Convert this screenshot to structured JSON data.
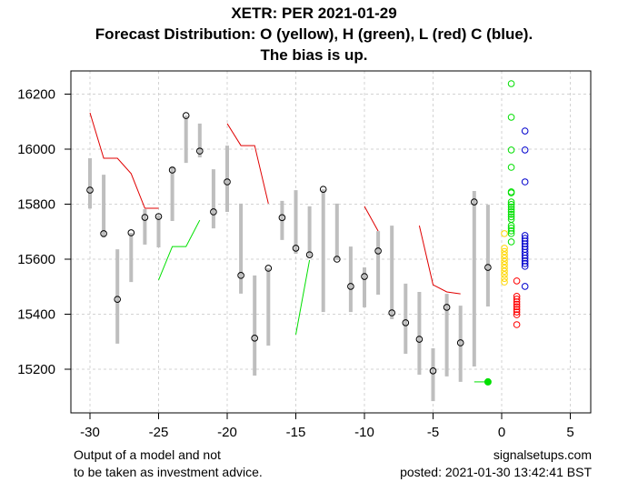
{
  "chart_data": {
    "type": "scatter",
    "title": "XETR: PER 2021-01-29",
    "subtitle": "Forecast Distribution: O (yellow), H (green), L (red) C (blue).",
    "subtitle2": "The bias is up.",
    "xlabel": "",
    "ylabel": "",
    "xlim": [
      -31.5,
      6.5
    ],
    "ylim": [
      15050,
      16280
    ],
    "grid": true,
    "x_ticks": [
      -30,
      -25,
      -20,
      -15,
      -10,
      -5,
      0,
      5
    ],
    "y_ticks": [
      15200,
      15400,
      15600,
      15800,
      16000,
      16200
    ],
    "x_tick_labels": [
      "-30",
      "-25",
      "-20",
      "-15",
      "-10",
      "-5",
      "0",
      "5"
    ],
    "y_tick_labels": [
      "15200",
      "15400",
      "15600",
      "15800",
      "16000",
      "16200"
    ],
    "colors": {
      "bar": "#bebebe",
      "close_marker": "#000000",
      "red_line": "#e00000",
      "green_line": "#00e000",
      "open_dist": "#ffd700",
      "high_dist": "#00e000",
      "low_dist": "#ff0000",
      "close_dist": "#0000cd"
    },
    "bars": [
      {
        "x": -30,
        "high": 15967,
        "low": 15784,
        "close": 15851
      },
      {
        "x": -29,
        "high": 15907,
        "low": 15679,
        "close": 15693
      },
      {
        "x": -28,
        "high": 15636,
        "low": 15293,
        "close": 15454
      },
      {
        "x": -27,
        "high": 15696,
        "low": 15517,
        "close": 15696
      },
      {
        "x": -26,
        "high": 15782,
        "low": 15653,
        "close": 15752
      },
      {
        "x": -25,
        "high": 15759,
        "low": 15643,
        "close": 15755
      },
      {
        "x": -24,
        "high": 15937,
        "low": 15739,
        "close": 15924
      },
      {
        "x": -23,
        "high": 16122,
        "low": 15950,
        "close": 16122
      },
      {
        "x": -22,
        "high": 16093,
        "low": 15970,
        "close": 15993
      },
      {
        "x": -21,
        "high": 15927,
        "low": 15712,
        "close": 15772
      },
      {
        "x": -20,
        "high": 16013,
        "low": 15772,
        "close": 15881
      },
      {
        "x": -19,
        "high": 15802,
        "low": 15475,
        "close": 15541
      },
      {
        "x": -18,
        "high": 15541,
        "low": 15177,
        "close": 15313
      },
      {
        "x": -17,
        "high": 15567,
        "low": 15286,
        "close": 15567
      },
      {
        "x": -16,
        "high": 15812,
        "low": 15670,
        "close": 15751
      },
      {
        "x": -15,
        "high": 15851,
        "low": 15620,
        "close": 15640
      },
      {
        "x": -14,
        "high": 15792,
        "low": 15609,
        "close": 15616
      },
      {
        "x": -13,
        "high": 15854,
        "low": 15408,
        "close": 15854
      },
      {
        "x": -12,
        "high": 15802,
        "low": 15597,
        "close": 15600
      },
      {
        "x": -11,
        "high": 15646,
        "low": 15408,
        "close": 15501
      },
      {
        "x": -10,
        "high": 15570,
        "low": 15425,
        "close": 15537
      },
      {
        "x": -9,
        "high": 15702,
        "low": 15471,
        "close": 15630
      },
      {
        "x": -8,
        "high": 15722,
        "low": 15382,
        "close": 15405
      },
      {
        "x": -7,
        "high": 15511,
        "low": 15256,
        "close": 15369
      },
      {
        "x": -6,
        "high": 15481,
        "low": 15180,
        "close": 15309
      },
      {
        "x": -5,
        "high": 15276,
        "low": 15084,
        "close": 15194
      },
      {
        "x": -4,
        "high": 15474,
        "low": 15174,
        "close": 15425
      },
      {
        "x": -3,
        "high": 15431,
        "low": 15154,
        "close": 15296
      },
      {
        "x": -2,
        "high": 15848,
        "low": 15210,
        "close": 15808
      },
      {
        "x": -1,
        "high": 15798,
        "low": 15428,
        "close": 15570
      }
    ],
    "red_lines": [
      [
        [
          -30,
          16132
        ],
        [
          -29,
          15967
        ],
        [
          -28,
          15967
        ],
        [
          -27,
          15911
        ],
        [
          -26,
          15785
        ],
        [
          -25,
          15785
        ]
      ],
      [
        [
          -20,
          16093
        ],
        [
          -19,
          16013
        ],
        [
          -18,
          16013
        ],
        [
          -17,
          15802
        ]
      ],
      [
        [
          -10,
          15792
        ],
        [
          -9,
          15702
        ]
      ],
      [
        [
          -6,
          15722
        ],
        [
          -5,
          15507
        ],
        [
          -4,
          15481
        ],
        [
          -3,
          15474
        ]
      ]
    ],
    "green_lines": [
      [
        [
          -25,
          15524
        ],
        [
          -24,
          15646
        ],
        [
          -23,
          15646
        ],
        [
          -22,
          15742
        ]
      ],
      [
        [
          -15,
          15326
        ],
        [
          -14,
          15597
        ]
      ],
      [
        [
          -2,
          15154
        ],
        [
          -1,
          15154
        ]
      ]
    ],
    "green_point": {
      "x": -1,
      "y": 15154
    },
    "distributions": {
      "open": {
        "x": 0.2,
        "values": [
          15693,
          15640,
          15628,
          15616,
          15604,
          15592,
          15580,
          15568,
          15556,
          15544,
          15530,
          15517
        ]
      },
      "high": {
        "x": 0.7,
        "values": [
          16238,
          16116,
          15997,
          15934,
          15845,
          15841,
          15808,
          15799,
          15790,
          15781,
          15772,
          15763,
          15754,
          15745,
          15722,
          15713,
          15703,
          15693,
          15663
        ]
      },
      "low": {
        "x": 1.1,
        "values": [
          15521,
          15465,
          15455,
          15445,
          15436,
          15427,
          15417,
          15408,
          15398,
          15362
        ]
      },
      "close": {
        "x": 1.7,
        "values": [
          16066,
          15997,
          15881,
          15686,
          15676,
          15666,
          15656,
          15646,
          15636,
          15625,
          15614,
          15604,
          15594,
          15584,
          15574,
          15501
        ]
      }
    }
  },
  "footer": {
    "left_line1": "Output of a model and not",
    "left_line2": "to be taken as investment advice.",
    "right_line1": "signalsetups.com",
    "right_line2": "posted: 2021-01-30 13:42:41 BST"
  }
}
